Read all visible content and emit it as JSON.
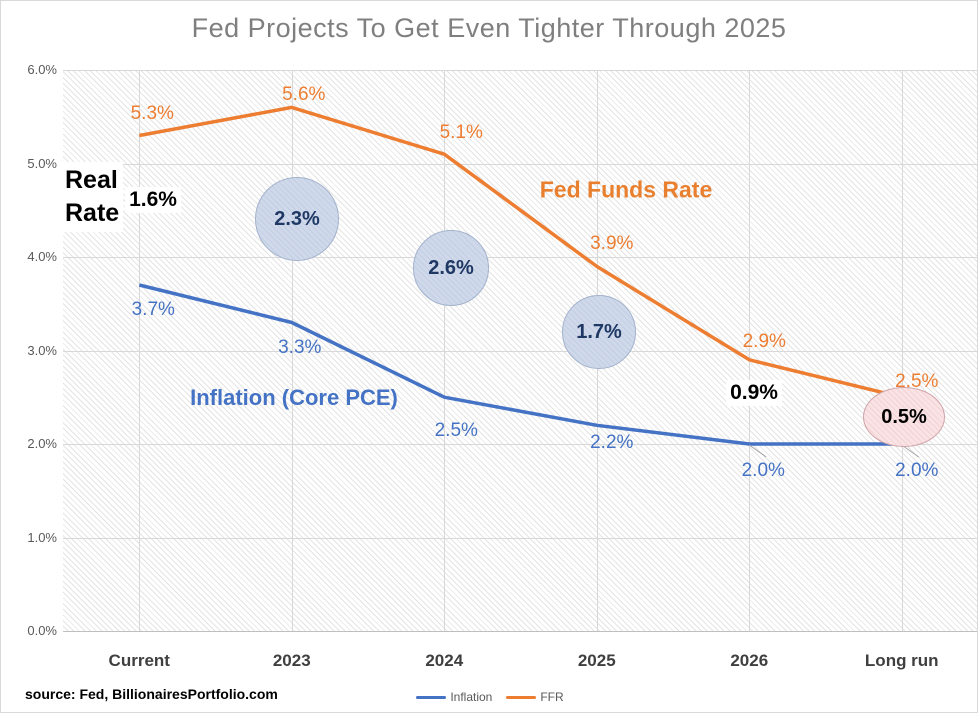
{
  "chart_data": {
    "type": "line",
    "title": "Fed Projects To Get Even Tighter Through 2025",
    "categories": [
      "Current",
      "2023",
      "2024",
      "2025",
      "2026",
      "Long run"
    ],
    "series": [
      {
        "name": "Inflation",
        "color": "#4472c4",
        "values": [
          3.7,
          3.3,
          2.5,
          2.2,
          2.0,
          2.0
        ],
        "labels": [
          "3.7%",
          "3.3%",
          "2.5%",
          "2.2%",
          "2.0%",
          "2.0%"
        ]
      },
      {
        "name": "FFR",
        "color": "#ed7d31",
        "values": [
          5.3,
          5.6,
          5.1,
          3.9,
          2.9,
          2.5
        ],
        "labels": [
          "5.3%",
          "5.6%",
          "5.1%",
          "3.9%",
          "2.9%",
          "2.5%"
        ]
      }
    ],
    "real_rate": {
      "label_line1": "Real",
      "label_line2": "Rate",
      "values": [
        "1.6%",
        "2.3%",
        "2.6%",
        "1.7%",
        "0.9%",
        "0.5%"
      ],
      "styles": [
        "plain",
        "bubble",
        "bubble",
        "bubble",
        "plain",
        "pink"
      ]
    },
    "annotations": {
      "ffr": "Fed Funds Rate",
      "inflation": "Inflation (Core PCE)"
    },
    "y_ticks": [
      "6.0%",
      "5.0%",
      "4.0%",
      "3.0%",
      "2.0%",
      "1.0%",
      "0.0%"
    ],
    "ylim": [
      0,
      6
    ],
    "grid": "on",
    "legend_position": "bottom-center",
    "colors": {
      "inflation_line": "#4472c4",
      "ffr_line": "#ed7d31",
      "bubble_fill": "#cfd9ea",
      "bubble_text": "#1f3864",
      "pink_fill": "#fae3e5",
      "title_gray": "#7f7f7f"
    }
  },
  "footer": {
    "source": "source: Fed, BillionairesPortfolio.com"
  }
}
